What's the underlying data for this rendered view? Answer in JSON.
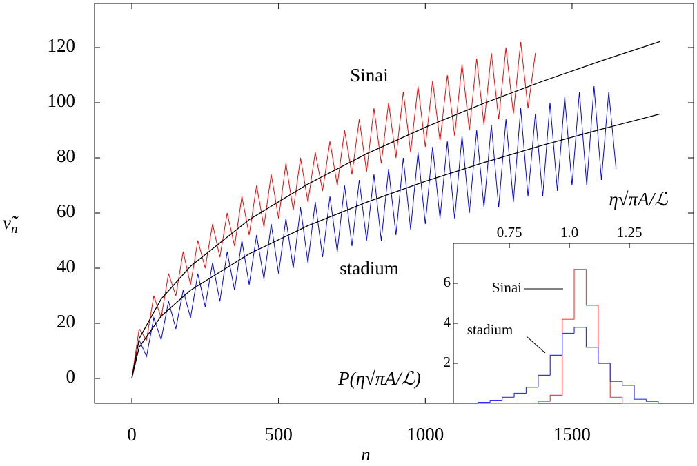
{
  "chart_data": [
    {
      "type": "line",
      "xlabel": "n",
      "ylabel": {
        "symbol": "ν̃",
        "subscript": "n"
      },
      "annotations": [
        "Sinai",
        "stadium"
      ],
      "xlim": [
        -127,
        1914
      ],
      "ylim": [
        -9,
        136
      ],
      "xticks": [
        0,
        500,
        1000,
        1500
      ],
      "yticks": [
        0,
        20,
        40,
        60,
        80,
        100,
        120
      ],
      "series": [
        {
          "color": "#ff0000",
          "x": [
            0,
            25,
            50,
            75,
            100,
            125,
            150,
            175,
            200,
            225,
            250,
            275,
            300,
            325,
            350,
            375,
            400,
            425,
            450,
            475,
            500,
            525,
            550,
            575,
            600,
            625,
            650,
            675,
            700,
            725,
            750,
            775,
            800,
            825,
            850,
            875,
            900,
            925,
            950,
            975,
            1000,
            1025,
            1050,
            1075,
            1100,
            1125,
            1150,
            1175,
            1200,
            1225,
            1250,
            1275,
            1300,
            1325,
            1350,
            1375
          ],
          "values": [
            0,
            18,
            14,
            30,
            22,
            38,
            30,
            46,
            34,
            50,
            40,
            56,
            44,
            60,
            48,
            66,
            52,
            70,
            55,
            74,
            58,
            78,
            61,
            80,
            64,
            82,
            68,
            86,
            70,
            90,
            74,
            94,
            75,
            98,
            78,
            100,
            80,
            104,
            82,
            106,
            84,
            108,
            86,
            110,
            88,
            114,
            90,
            116,
            92,
            118,
            94,
            120,
            96,
            122,
            98,
            118
          ]
        },
        {
          "color": "#0000ff",
          "x": [
            0,
            25,
            50,
            75,
            100,
            125,
            150,
            175,
            200,
            225,
            250,
            275,
            300,
            325,
            350,
            375,
            400,
            425,
            450,
            475,
            500,
            525,
            550,
            575,
            600,
            625,
            650,
            675,
            700,
            725,
            750,
            775,
            800,
            825,
            850,
            875,
            900,
            925,
            950,
            975,
            1000,
            1025,
            1050,
            1075,
            1100,
            1125,
            1150,
            1175,
            1200,
            1225,
            1250,
            1275,
            1300,
            1325,
            1350,
            1375,
            1400,
            1425,
            1450,
            1475,
            1500,
            1525,
            1550,
            1575,
            1600,
            1625,
            1650
          ],
          "values": [
            0,
            14,
            8,
            22,
            14,
            28,
            18,
            32,
            22,
            38,
            26,
            42,
            28,
            46,
            32,
            50,
            34,
            52,
            36,
            56,
            38,
            58,
            40,
            62,
            42,
            64,
            44,
            66,
            46,
            70,
            48,
            72,
            50,
            74,
            50,
            76,
            52,
            80,
            54,
            82,
            56,
            84,
            58,
            86,
            58,
            88,
            60,
            90,
            62,
            92,
            62,
            94,
            64,
            98,
            66,
            96,
            66,
            100,
            68,
            102,
            70,
            104,
            70,
            106,
            72,
            104,
            76
          ]
        }
      ],
      "fits": [
        {
          "color": "#000000",
          "x": [
            0,
            25,
            100,
            200,
            400,
            600,
            800,
            1000,
            1200,
            1400,
            1600,
            1800
          ],
          "values": [
            0,
            14.4,
            28.8,
            40.7,
            57.6,
            70.5,
            81.5,
            91.1,
            99.8,
            107.8,
            115.2,
            122.2
          ]
        },
        {
          "color": "#000000",
          "x": [
            0,
            25,
            100,
            200,
            400,
            600,
            800,
            1000,
            1200,
            1400,
            1600,
            1800
          ],
          "values": [
            0,
            11.3,
            22.6,
            32,
            45.2,
            55.4,
            63.9,
            71.5,
            78.3,
            84.6,
            90.4,
            95.9
          ]
        }
      ]
    },
    {
      "type": "histogram",
      "xlabel": "η√πA/ℒ",
      "ylabel": "P(η√πA/ℒ)",
      "xlim": [
        0.517,
        1.517
      ],
      "ylim": [
        0,
        8
      ],
      "xticks": [
        0.75,
        {
          "value": 1,
          "label": "1.0"
        },
        1.25
      ],
      "yticks": [
        2,
        4,
        6
      ],
      "bins": [
        0.62,
        0.67,
        0.72,
        0.77,
        0.82,
        0.87,
        0.92,
        0.97,
        1.02,
        1.07,
        1.12,
        1.17,
        1.22,
        1.27,
        1.32,
        1.37
      ],
      "series": [
        {
          "name": "Sinai",
          "color": "#ff4040",
          "values": [
            0,
            0,
            0,
            0,
            0,
            0.1,
            0.4,
            4.2,
            6.7,
            4.9,
            2.0,
            0.3,
            0,
            0,
            0
          ]
        },
        {
          "name": "stadium",
          "color": "#3030ff",
          "values": [
            0.05,
            0.15,
            0.3,
            0.5,
            0.8,
            1.4,
            2.4,
            3.5,
            3.8,
            2.8,
            2.0,
            1.1,
            0.9,
            0.2,
            0.1
          ]
        }
      ]
    }
  ]
}
